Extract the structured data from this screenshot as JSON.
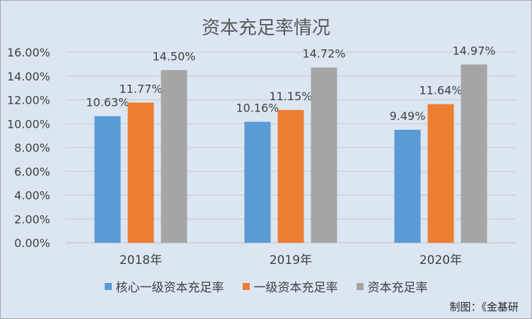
{
  "chart_data": {
    "type": "bar",
    "title": "资本充足率情况",
    "categories": [
      "2018年",
      "2019年",
      "2020年"
    ],
    "series": [
      {
        "name": "核心一级资本充足率",
        "color": "#5b9bd5",
        "values": [
          10.63,
          10.16,
          9.49
        ],
        "labels": [
          "10.63%",
          "10.16%",
          "9.49%"
        ]
      },
      {
        "name": "一级资本充足率",
        "color": "#ed7d31",
        "values": [
          11.77,
          11.15,
          11.64
        ],
        "labels": [
          "11.77%",
          "11.15%",
          "11.64%"
        ]
      },
      {
        "name": "资本充足率",
        "color": "#a5a5a5",
        "values": [
          14.5,
          14.72,
          14.97
        ],
        "labels": [
          "14.50%",
          "14.72%",
          "14.97%"
        ]
      }
    ],
    "ylim": [
      0,
      16
    ],
    "yticks": [
      0,
      2,
      4,
      6,
      8,
      10,
      12,
      14,
      16
    ],
    "ytick_labels": [
      "0.00%",
      "2.00%",
      "4.00%",
      "6.00%",
      "8.00%",
      "10.00%",
      "12.00%",
      "14.00%",
      "16.00%"
    ],
    "grid": true,
    "legend_position": "bottom"
  },
  "source_note": "制图：《金基研"
}
